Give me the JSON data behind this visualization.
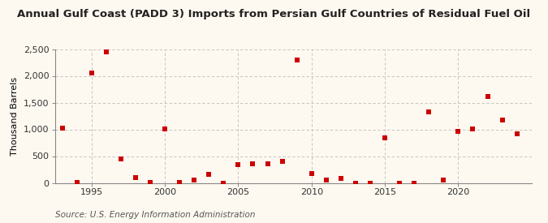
{
  "title": "Annual Gulf Coast (PADD 3) Imports from Persian Gulf Countries of Residual Fuel Oil",
  "ylabel": "Thousand Barrels",
  "source": "Source: U.S. Energy Information Administration",
  "background_color": "#fef9f0",
  "marker_color": "#cc0000",
  "years": [
    1993,
    1994,
    1995,
    1996,
    1997,
    1998,
    1999,
    2000,
    2001,
    2002,
    2003,
    2004,
    2005,
    2006,
    2007,
    2008,
    2009,
    2010,
    2011,
    2012,
    2013,
    2014,
    2015,
    2016,
    2017,
    2018,
    2019,
    2020,
    2021,
    2022,
    2023,
    2024
  ],
  "values": [
    1020,
    15,
    2050,
    2450,
    450,
    100,
    10,
    1010,
    15,
    50,
    160,
    0,
    340,
    350,
    360,
    400,
    2290,
    175,
    60,
    80,
    0,
    0,
    835,
    0,
    0,
    1330,
    55,
    960,
    1010,
    1610,
    1175,
    920
  ],
  "ylim": [
    0,
    2500
  ],
  "yticks": [
    0,
    500,
    1000,
    1500,
    2000,
    2500
  ],
  "ytick_labels": [
    "0",
    "500",
    "1,000",
    "1,500",
    "2,000",
    "2,500"
  ],
  "xlim": [
    1992.5,
    2025
  ],
  "xticks": [
    1995,
    2000,
    2005,
    2010,
    2015,
    2020
  ],
  "title_fontsize": 9.5,
  "axis_fontsize": 8,
  "source_fontsize": 7.5
}
